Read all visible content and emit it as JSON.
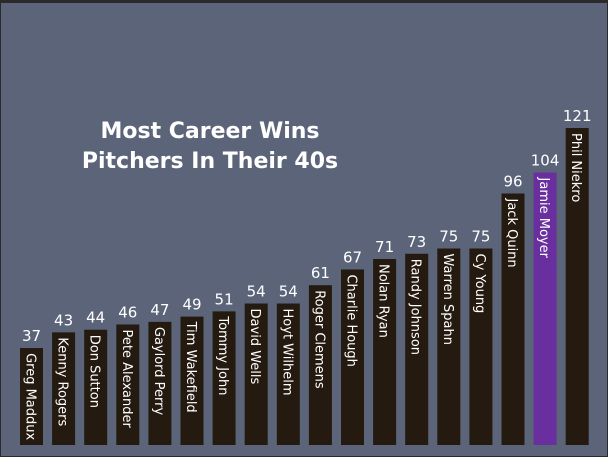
{
  "chart_data": {
    "type": "bar",
    "title": "Most Career Wins",
    "subtitle": "Pitchers In Their 40s",
    "categories": [
      "Greg Maddux",
      "Kenny Rogers",
      "Don Sutton",
      "Pete Alexander",
      "Gaylord Perry",
      "Tim Wakefield",
      "Tommy John",
      "David Wells",
      "Hoyt Wilhelm",
      "Roger Clemens",
      "Charlie Hough",
      "Nolan Ryan",
      "Randy Johnson",
      "Warren Spahn",
      "Cy Young",
      "Jack Quinn",
      "Jamie Moyer",
      "Phil Niekro"
    ],
    "values": [
      37,
      43,
      44,
      46,
      47,
      49,
      51,
      54,
      54,
      61,
      67,
      71,
      73,
      75,
      75,
      96,
      104,
      121
    ],
    "colors": [
      "#241a0f",
      "#241a0f",
      "#241a0f",
      "#241a0f",
      "#241a0f",
      "#241a0f",
      "#241a0f",
      "#241a0f",
      "#241a0f",
      "#241a0f",
      "#241a0f",
      "#241a0f",
      "#241a0f",
      "#241a0f",
      "#241a0f",
      "#241a0f",
      "#6a2f9e",
      "#241a0f"
    ]
  }
}
